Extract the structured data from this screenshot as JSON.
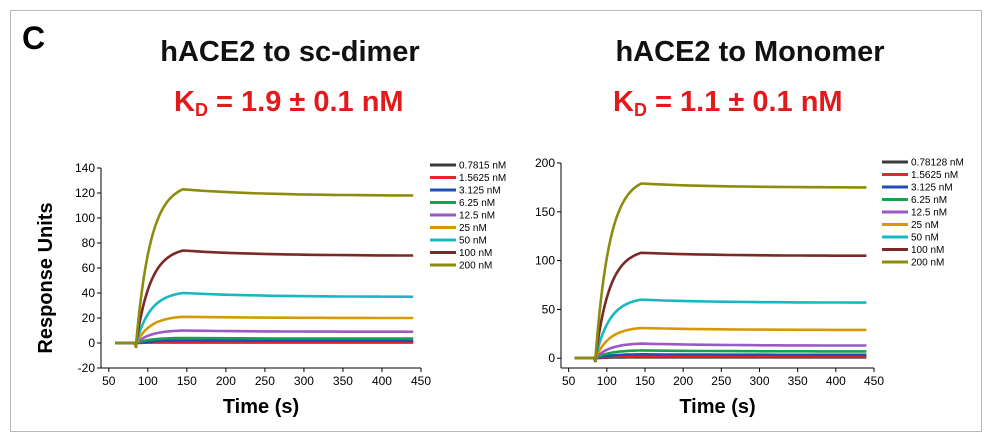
{
  "panel_label": "C",
  "chart_data": [
    {
      "type": "line",
      "title": "hACE2 to sc-dimer",
      "kd": {
        "prefix": "K",
        "sub": "D",
        "value": " = 1.9 ± 0.1 nM"
      },
      "xlabel": "Time (s)",
      "ylabel": "Response Units",
      "xlim": [
        40,
        450
      ],
      "ylim": [
        -20,
        140
      ],
      "xticks": [
        50,
        100,
        150,
        200,
        250,
        300,
        350,
        400,
        450
      ],
      "yticks": [
        -20,
        0,
        20,
        40,
        60,
        80,
        100,
        120,
        140
      ],
      "grid": false,
      "legend_position": "top-right",
      "association_start": 85,
      "dissociation_start": 145,
      "end": 440,
      "series": [
        {
          "name": "0.7815 nM",
          "color": "#3a3a3a",
          "plateau": 0.5,
          "end_value": 0.5
        },
        {
          "name": "1.5625 nM",
          "color": "#e8242c",
          "plateau": 1,
          "end_value": 1
        },
        {
          "name": "3.125 nM",
          "color": "#1f4fb4",
          "plateau": 2,
          "end_value": 1.8
        },
        {
          "name": "6.25 nM",
          "color": "#1aa04a",
          "plateau": 4,
          "end_value": 3.5
        },
        {
          "name": "12.5 nM",
          "color": "#9b59c6",
          "plateau": 10,
          "end_value": 9
        },
        {
          "name": "25 nM",
          "color": "#d49a00",
          "plateau": 21,
          "end_value": 20
        },
        {
          "name": "50 nM",
          "color": "#18b8c0",
          "plateau": 40,
          "end_value": 37
        },
        {
          "name": "100 nM",
          "color": "#7a2a26",
          "plateau": 74,
          "end_value": 70
        },
        {
          "name": "200 nM",
          "color": "#8c8c10",
          "plateau": 123,
          "end_value": 118
        }
      ]
    },
    {
      "type": "line",
      "title": "hACE2 to Monomer",
      "kd": {
        "prefix": "K",
        "sub": "D",
        "value": " = 1.1 ± 0.1 nM"
      },
      "xlabel": "Time (s)",
      "ylabel": "",
      "xlim": [
        40,
        450
      ],
      "ylim": [
        -10,
        200
      ],
      "xticks": [
        50,
        100,
        150,
        200,
        250,
        300,
        350,
        400,
        450
      ],
      "yticks": [
        0,
        50,
        100,
        150,
        200
      ],
      "grid": false,
      "legend_position": "top-right",
      "association_start": 85,
      "dissociation_start": 145,
      "end": 440,
      "series": [
        {
          "name": "0.78128 nM",
          "color": "#3a3a3a",
          "plateau": 1,
          "end_value": 1
        },
        {
          "name": "1.5625 nM",
          "color": "#e8242c",
          "plateau": 2,
          "end_value": 2
        },
        {
          "name": "3.125 nM",
          "color": "#1f4fb4",
          "plateau": 4,
          "end_value": 3.5
        },
        {
          "name": "6.25 nM",
          "color": "#1aa04a",
          "plateau": 8,
          "end_value": 7
        },
        {
          "name": "12.5 nM",
          "color": "#9b59c6",
          "plateau": 15,
          "end_value": 13
        },
        {
          "name": "25 nM",
          "color": "#d49a00",
          "plateau": 31,
          "end_value": 29
        },
        {
          "name": "50 nM",
          "color": "#18b8c0",
          "plateau": 60,
          "end_value": 57
        },
        {
          "name": "100 nM",
          "color": "#7a2a26",
          "plateau": 108,
          "end_value": 105
        },
        {
          "name": "200 nM",
          "color": "#8c8c10",
          "plateau": 179,
          "end_value": 175
        }
      ]
    }
  ]
}
